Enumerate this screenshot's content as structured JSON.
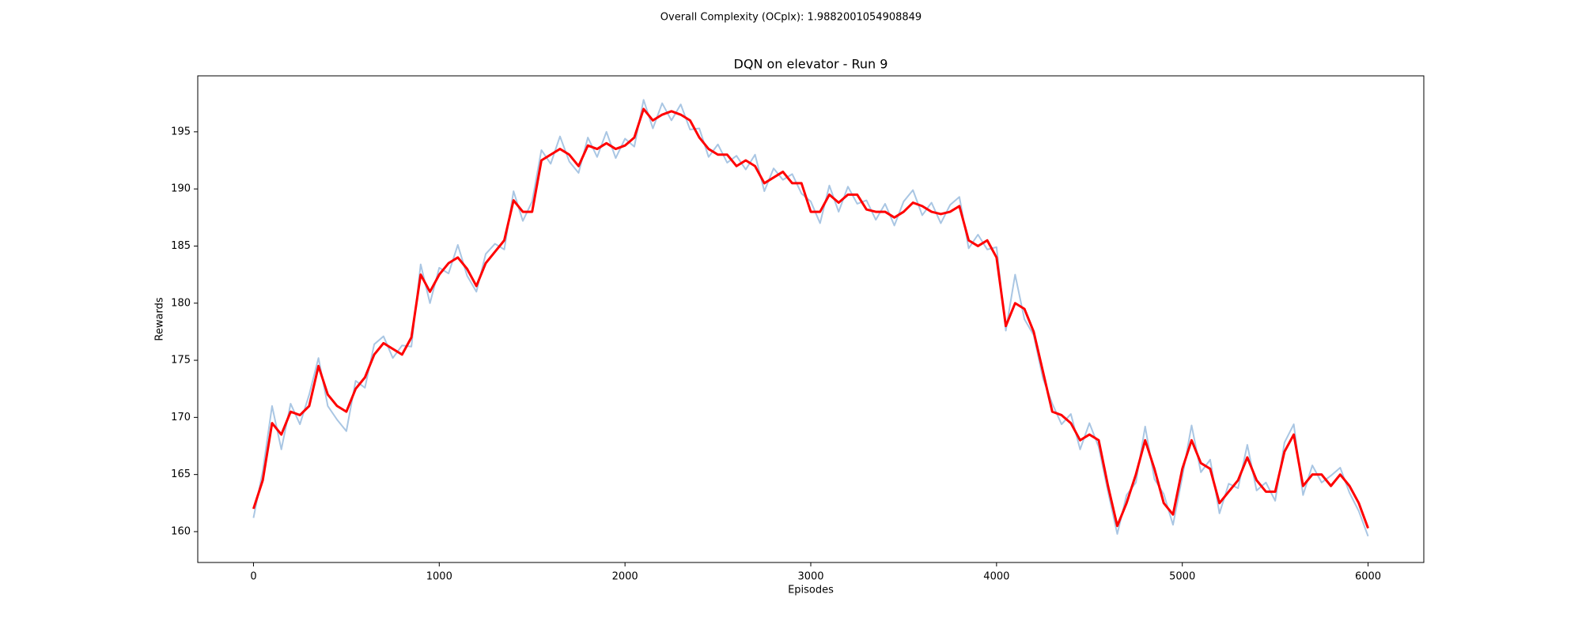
{
  "chart_data": {
    "type": "line",
    "suptitle": "Overall Complexity (OCplx): 1.9882001054908849",
    "suptitle_color": "#ff0000",
    "title": "DQN on elevator - Run 9",
    "xlabel": "Episodes",
    "ylabel": "Rewards",
    "x": [
      0,
      50,
      100,
      150,
      200,
      250,
      300,
      350,
      400,
      450,
      500,
      550,
      600,
      650,
      700,
      750,
      800,
      850,
      900,
      950,
      1000,
      1050,
      1100,
      1150,
      1200,
      1250,
      1300,
      1350,
      1400,
      1450,
      1500,
      1550,
      1600,
      1650,
      1700,
      1750,
      1800,
      1850,
      1900,
      1950,
      2000,
      2050,
      2100,
      2150,
      2200,
      2250,
      2300,
      2350,
      2400,
      2450,
      2500,
      2550,
      2600,
      2650,
      2700,
      2750,
      2800,
      2850,
      2900,
      2950,
      3000,
      3050,
      3100,
      3150,
      3200,
      3250,
      3300,
      3350,
      3400,
      3450,
      3500,
      3550,
      3600,
      3650,
      3700,
      3750,
      3800,
      3850,
      3900,
      3950,
      4000,
      4050,
      4100,
      4150,
      4200,
      4250,
      4300,
      4350,
      4400,
      4450,
      4500,
      4550,
      4600,
      4650,
      4700,
      4750,
      4800,
      4850,
      4900,
      4950,
      5000,
      5050,
      5100,
      5150,
      5200,
      5250,
      5300,
      5350,
      5400,
      5450,
      5500,
      5550,
      5600,
      5650,
      5700,
      5750,
      5800,
      5850,
      5900,
      5950,
      6000
    ],
    "series": [
      {
        "color": "#a9c6e3",
        "width": 2,
        "values": [
          161.2,
          165.3,
          171.0,
          167.2,
          171.2,
          169.4,
          172.0,
          175.2,
          171.0,
          169.8,
          168.8,
          173.2,
          172.6,
          176.4,
          177.1,
          175.2,
          176.3,
          176.2,
          183.4,
          180.0,
          183.1,
          182.6,
          185.1,
          182.4,
          181.0,
          184.3,
          185.2,
          184.7,
          189.8,
          187.2,
          188.9,
          193.4,
          192.2,
          194.6,
          192.4,
          191.4,
          194.5,
          192.8,
          195.0,
          192.7,
          194.4,
          193.7,
          197.8,
          195.3,
          197.5,
          196.0,
          197.4,
          195.2,
          195.3,
          192.8,
          193.9,
          192.3,
          192.9,
          191.7,
          193.0,
          189.8,
          191.8,
          190.8,
          191.3,
          189.6,
          188.9,
          187.0,
          190.3,
          188.0,
          190.2,
          188.7,
          189.0,
          187.3,
          188.7,
          186.8,
          188.9,
          189.9,
          187.7,
          188.8,
          187.0,
          188.6,
          189.3,
          184.8,
          186.0,
          184.7,
          184.9,
          177.6,
          182.5,
          178.6,
          177.2,
          173.4,
          171.2,
          169.4,
          170.3,
          167.2,
          169.5,
          167.4,
          163.5,
          159.8,
          163.2,
          164.3,
          169.2,
          164.6,
          163.3,
          160.6,
          164.8,
          169.3,
          165.2,
          166.3,
          161.6,
          164.2,
          163.8,
          167.6,
          163.6,
          164.3,
          162.7,
          167.8,
          169.4,
          163.2,
          165.8,
          164.3,
          164.9,
          165.6,
          163.4,
          161.8,
          159.6
        ]
      },
      {
        "color": "#ff0000",
        "width": 3,
        "values": [
          162.0,
          164.5,
          169.5,
          168.5,
          170.5,
          170.2,
          171,
          174.5,
          172,
          171,
          170.5,
          172.5,
          173.5,
          175.5,
          176.5,
          176,
          175.5,
          177,
          182.5,
          181,
          182.5,
          183.5,
          184,
          183,
          181.5,
          183.5,
          184.5,
          185.5,
          189,
          188,
          188,
          192.5,
          193,
          193.5,
          193,
          192,
          193.8,
          193.5,
          194,
          193.5,
          193.8,
          194.5,
          197,
          196,
          196.5,
          196.8,
          196.5,
          196,
          194.5,
          193.5,
          193,
          193,
          192,
          192.5,
          192,
          190.5,
          191,
          191.5,
          190.5,
          190.5,
          188,
          188,
          189.5,
          188.8,
          189.5,
          189.5,
          188.2,
          188,
          188,
          187.5,
          188,
          188.8,
          188.5,
          188,
          187.8,
          188,
          188.5,
          185.5,
          185,
          185.5,
          184,
          178,
          180,
          179.5,
          177.5,
          174,
          170.5,
          170.2,
          169.5,
          168,
          168.5,
          168,
          164,
          160.5,
          162.5,
          165,
          168,
          165.5,
          162.5,
          161.5,
          165.5,
          168,
          166,
          165.5,
          162.5,
          163.5,
          164.5,
          166.5,
          164.5,
          163.5,
          163.5,
          167,
          168.5,
          164,
          165,
          165,
          164,
          165,
          164,
          162.5,
          160.3
        ]
      }
    ],
    "xlim": [
      -300,
      6300
    ],
    "ylim": [
      157.3,
      199.9
    ],
    "xticks": [
      0,
      1000,
      2000,
      3000,
      4000,
      5000,
      6000
    ],
    "yticks": [
      160,
      165,
      170,
      175,
      180,
      185,
      190,
      195
    ],
    "grid": false
  }
}
